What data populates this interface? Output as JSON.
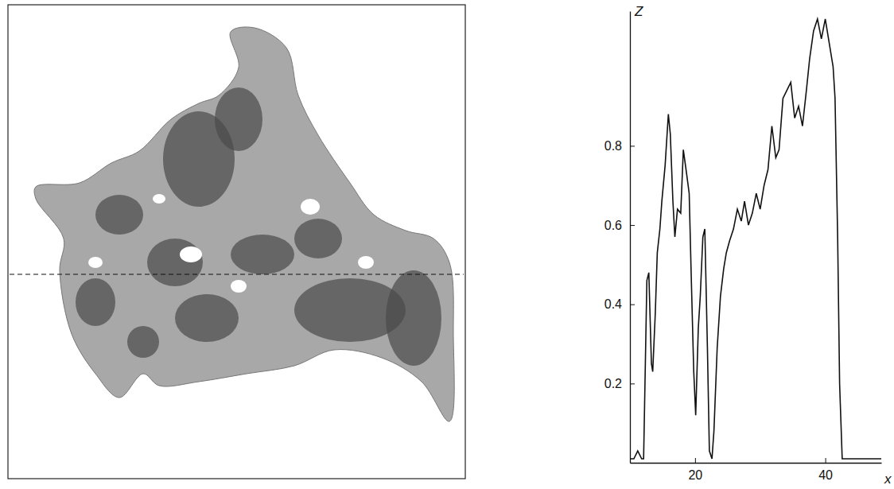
{
  "chart_data": {
    "type": "line",
    "x_label": "x",
    "y_label": "Z",
    "color": "#111111",
    "xlim": [
      10,
      48.6
    ],
    "ylim": [
      0,
      1.14
    ],
    "xticks": [
      20,
      40
    ],
    "yticks": [
      0.2,
      0.4,
      0.6,
      0.8
    ],
    "x": [
      10.0,
      10.6,
      11.2,
      11.8,
      12.1,
      12.6,
      12.9,
      13.3,
      13.5,
      13.9,
      14.2,
      14.6,
      14.9,
      15.4,
      15.9,
      16.2,
      16.6,
      16.9,
      17.3,
      17.8,
      18.2,
      18.7,
      19.1,
      19.4,
      19.8,
      20.1,
      20.5,
      20.8,
      21.2,
      21.5,
      21.9,
      22.2,
      22.6,
      22.9,
      23.4,
      23.9,
      24.4,
      24.8,
      25.3,
      25.9,
      26.5,
      27.1,
      27.6,
      28.2,
      28.8,
      29.4,
      30.0,
      30.6,
      31.2,
      31.8,
      32.4,
      32.9,
      33.5,
      34.1,
      34.7,
      35.3,
      35.9,
      36.5,
      37.1,
      37.6,
      38.2,
      38.8,
      39.4,
      40.0,
      40.6,
      41.2,
      41.5,
      41.9,
      42.2,
      42.6,
      43.5,
      44.7,
      46.5,
      48.6
    ],
    "values": [
      0.01,
      0.01,
      0.03,
      0.01,
      0.01,
      0.46,
      0.48,
      0.25,
      0.23,
      0.38,
      0.53,
      0.59,
      0.66,
      0.75,
      0.88,
      0.83,
      0.66,
      0.57,
      0.64,
      0.63,
      0.79,
      0.73,
      0.68,
      0.48,
      0.23,
      0.12,
      0.34,
      0.42,
      0.57,
      0.59,
      0.29,
      0.03,
      0.01,
      0.08,
      0.29,
      0.42,
      0.49,
      0.53,
      0.56,
      0.59,
      0.64,
      0.61,
      0.66,
      0.6,
      0.63,
      0.68,
      0.64,
      0.7,
      0.74,
      0.85,
      0.77,
      0.79,
      0.92,
      0.94,
      0.96,
      0.87,
      0.9,
      0.85,
      0.94,
      1.02,
      1.09,
      1.12,
      1.07,
      1.12,
      1.06,
      1.0,
      0.92,
      0.57,
      0.2,
      0.01,
      0.01,
      0.01,
      0.01,
      0.01
    ]
  }
}
